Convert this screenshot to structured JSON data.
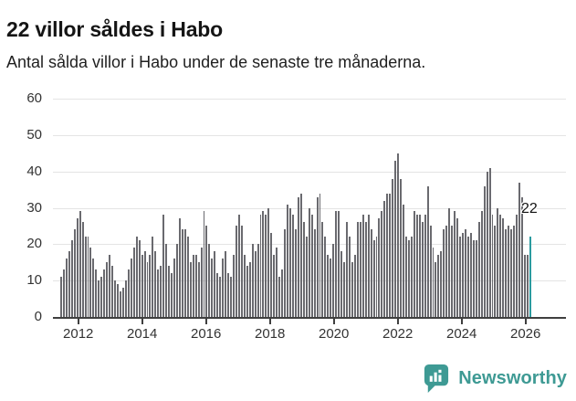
{
  "header": {
    "title": "22 villor såldes i Habo",
    "subtitle": "Antal sålda villor i Habo under de senaste tre månaderna."
  },
  "chart_data": {
    "type": "bar",
    "title": "22 villor såldes i Habo",
    "subtitle": "Antal sålda villor i Habo under de senaste tre månaderna.",
    "xlabel": "",
    "ylabel": "",
    "ylim": [
      0,
      60
    ],
    "grid": true,
    "legend": "none",
    "yticks": [
      0,
      10,
      20,
      30,
      40,
      50,
      60
    ],
    "x_tick_labels": [
      "2012",
      "2014",
      "2016",
      "2018",
      "2020",
      "2022",
      "2024",
      "2026"
    ],
    "values": [
      11,
      13,
      16,
      18,
      21,
      24,
      27,
      29,
      26,
      22,
      22,
      19,
      16,
      13,
      10,
      11,
      13,
      15,
      17,
      14,
      10,
      9,
      7,
      8,
      10,
      13,
      16,
      19,
      22,
      21,
      17,
      18,
      15,
      17,
      22,
      18,
      13,
      14,
      28,
      20,
      14,
      12,
      16,
      20,
      27,
      24,
      24,
      22,
      15,
      17,
      17,
      15,
      19,
      29,
      25,
      20,
      16,
      18,
      12,
      11,
      16,
      18,
      12,
      11,
      17,
      25,
      28,
      25,
      17,
      14,
      15,
      20,
      18,
      20,
      28,
      29,
      28,
      30,
      23,
      17,
      19,
      11,
      13,
      24,
      31,
      30,
      28,
      24,
      33,
      34,
      26,
      22,
      30,
      28,
      24,
      33,
      34,
      26,
      22,
      17,
      16,
      20,
      29,
      29,
      18,
      15,
      26,
      22,
      15,
      17,
      26,
      26,
      28,
      26,
      28,
      24,
      21,
      22,
      27,
      29,
      32,
      34,
      34,
      38,
      43,
      45,
      38,
      31,
      22,
      21,
      22,
      29,
      28,
      28,
      26,
      28,
      36,
      25,
      19,
      15,
      17,
      18,
      24,
      25,
      30,
      25,
      29,
      27,
      22,
      23,
      24,
      22,
      23,
      21,
      21,
      26,
      29,
      36,
      40,
      41,
      28,
      25,
      30,
      28,
      27,
      24,
      25,
      24,
      25,
      28,
      37,
      33,
      17,
      17,
      22
    ],
    "highlight_last_value": 22,
    "annotation_label": "22",
    "bar_color": "#6a6a6f",
    "highlight_color": "#2a9b9f",
    "gridline_color": "#e4e4e4",
    "axis_color": "#3f3f3f"
  },
  "footer": {
    "brand": "Newsworthy",
    "logo_icon": "speech-bubble-bar-chart-icon",
    "brand_color": "#3e9a94"
  }
}
